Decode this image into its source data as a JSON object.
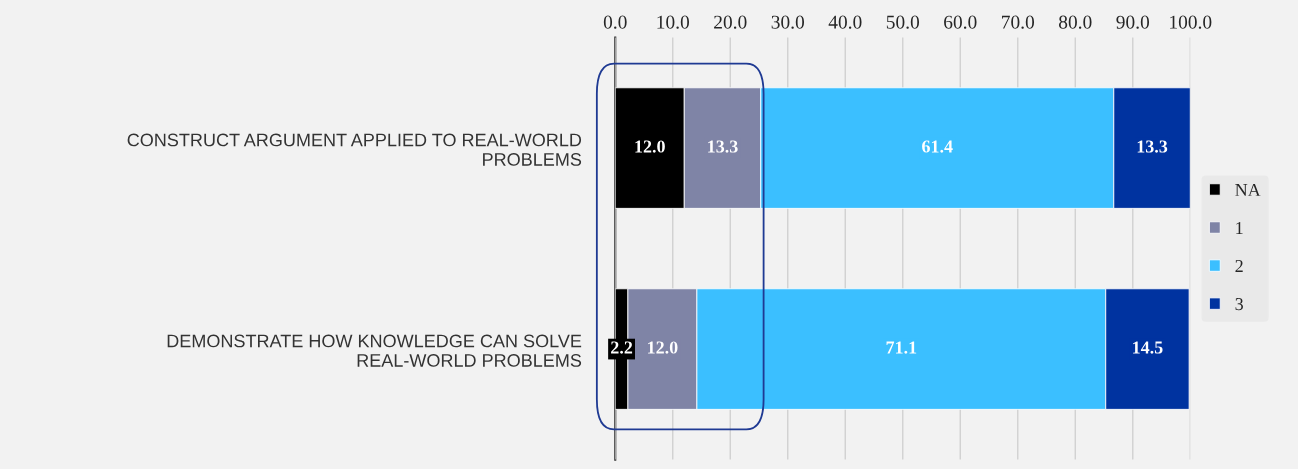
{
  "chart_data": {
    "type": "bar",
    "orientation": "horizontal",
    "stacked": true,
    "categories": [
      "CONSTRUCT ARGUMENT APPLIED TO REAL-WORLD PROBLEMS",
      "DEMONSTRATE HOW KNOWLEDGE CAN SOLVE REAL-WORLD PROBLEMS"
    ],
    "series": [
      {
        "name": "NA",
        "color": "#000000",
        "values": [
          12.0,
          2.2
        ],
        "value_labels": [
          "12.0",
          "2.2"
        ]
      },
      {
        "name": "1",
        "color": "#7f84a6",
        "values": [
          13.3,
          12.0
        ],
        "value_labels": [
          "13.3",
          "12.0"
        ]
      },
      {
        "name": "2",
        "color": "#3bbfff",
        "values": [
          61.4,
          71.1
        ],
        "value_labels": [
          "61.4",
          "71.1"
        ]
      },
      {
        "name": "3",
        "color": "#0033a0",
        "values": [
          13.3,
          14.5
        ],
        "value_labels": [
          "13.3",
          "14.5"
        ]
      }
    ],
    "xlim": [
      0,
      100
    ],
    "xticks": [
      {
        "value": 0,
        "label": "0.0"
      },
      {
        "value": 10,
        "label": "10.0"
      },
      {
        "value": 20,
        "label": "20.0"
      },
      {
        "value": 30,
        "label": "30.0"
      },
      {
        "value": 40,
        "label": "40.0"
      },
      {
        "value": 50,
        "label": "50.0"
      },
      {
        "value": 60,
        "label": "60.0"
      },
      {
        "value": 70,
        "label": "70.0"
      },
      {
        "value": 80,
        "label": "80.0"
      },
      {
        "value": 90,
        "label": "90.0"
      },
      {
        "value": 100,
        "label": "100.0"
      }
    ],
    "grid": "x",
    "legend": "right"
  }
}
